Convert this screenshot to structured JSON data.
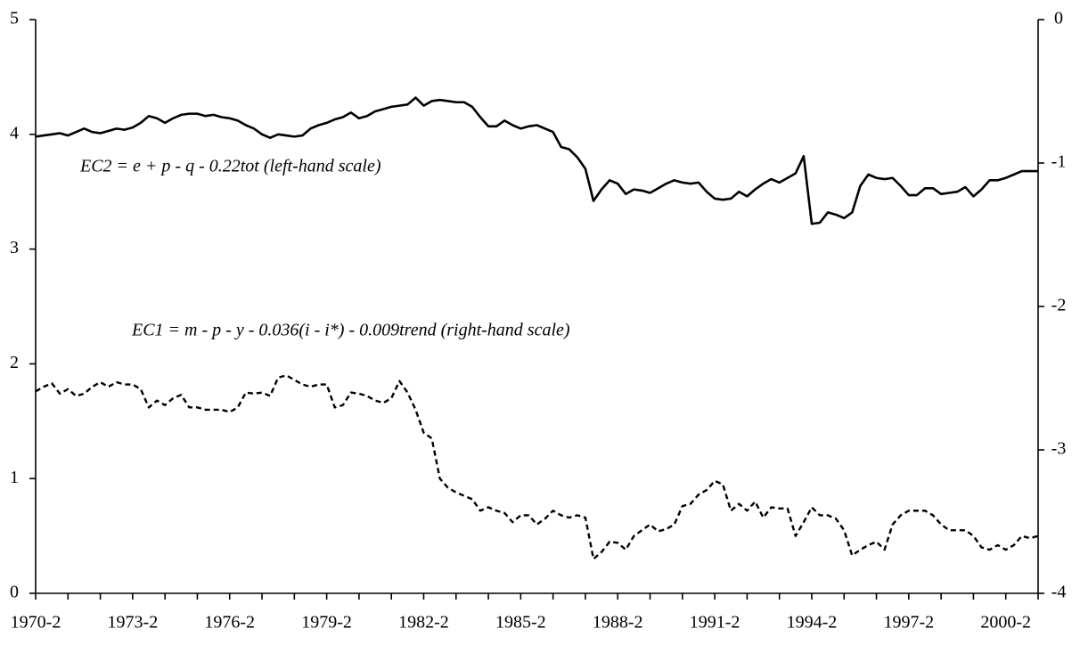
{
  "chart_data": {
    "type": "line",
    "categories": [
      "1970-2",
      null,
      null,
      null,
      null,
      null,
      null,
      null,
      null,
      null,
      null,
      null,
      "1973-2",
      null,
      null,
      null,
      null,
      null,
      null,
      null,
      null,
      null,
      null,
      null,
      "1976-2",
      null,
      null,
      null,
      null,
      null,
      null,
      null,
      null,
      null,
      null,
      null,
      "1979-2",
      null,
      null,
      null,
      null,
      null,
      null,
      null,
      null,
      null,
      null,
      null,
      "1982-2",
      null,
      null,
      null,
      null,
      null,
      null,
      null,
      null,
      null,
      null,
      null,
      "1985-2",
      null,
      null,
      null,
      null,
      null,
      null,
      null,
      null,
      null,
      null,
      null,
      "1988-2",
      null,
      null,
      null,
      null,
      null,
      null,
      null,
      null,
      null,
      null,
      null,
      "1991-2",
      null,
      null,
      null,
      null,
      null,
      null,
      null,
      null,
      null,
      null,
      null,
      "1994-2",
      null,
      null,
      null,
      null,
      null,
      null,
      null,
      null,
      null,
      null,
      null,
      "1997-2",
      null,
      null,
      null,
      null,
      null,
      null,
      null,
      null,
      null,
      null,
      null,
      "2000-2",
      null,
      null,
      null,
      null
    ],
    "ylim": [
      0,
      5
    ],
    "yticks": [
      0,
      1,
      2,
      3,
      4,
      5
    ],
    "y2lim": [
      -4,
      0
    ],
    "y2ticks": [
      -4,
      -3,
      -2,
      -1,
      0
    ],
    "series": [
      {
        "name": "EC2 = e + p - q - 0.22tot (left-hand scale)",
        "color": "#000000",
        "dashed": false,
        "axis": "y",
        "values": [
          3.98,
          3.99,
          4.0,
          4.01,
          3.99,
          4.02,
          4.05,
          4.02,
          4.01,
          4.03,
          4.05,
          4.04,
          4.06,
          4.1,
          4.16,
          4.14,
          4.1,
          4.14,
          4.17,
          4.18,
          4.18,
          4.16,
          4.17,
          4.15,
          4.14,
          4.12,
          4.08,
          4.05,
          4.0,
          3.97,
          4.0,
          3.99,
          3.98,
          3.99,
          4.05,
          4.08,
          4.1,
          4.13,
          4.15,
          4.19,
          4.14,
          4.16,
          4.2,
          4.22,
          4.24,
          4.25,
          4.26,
          4.32,
          4.25,
          4.29,
          4.3,
          4.29,
          4.28,
          4.28,
          4.24,
          4.15,
          4.07,
          4.07,
          4.12,
          4.08,
          4.05,
          4.07,
          4.08,
          4.05,
          4.02,
          3.89,
          3.87,
          3.8,
          3.7,
          3.42,
          3.52,
          3.6,
          3.57,
          3.48,
          3.52,
          3.51,
          3.49,
          3.53,
          3.57,
          3.6,
          3.58,
          3.57,
          3.58,
          3.5,
          3.44,
          3.43,
          3.44,
          3.5,
          3.46,
          3.52,
          3.57,
          3.61,
          3.58,
          3.62,
          3.66,
          3.81,
          3.22,
          3.23,
          3.32,
          3.3,
          3.27,
          3.32,
          3.55,
          3.65,
          3.62,
          3.61,
          3.62,
          3.55,
          3.47,
          3.47,
          3.53,
          3.53,
          3.48,
          3.49,
          3.5,
          3.54,
          3.46,
          3.52,
          3.6,
          3.6,
          3.62,
          3.65,
          3.68,
          3.68,
          3.68
        ]
      },
      {
        "name": "EC1 = m - p - y - 0.036(i - i*) - 0.009trend (right-hand scale)",
        "color": "#000000",
        "dashed": true,
        "axis": "y2",
        "values": [
          -2.592,
          -2.56,
          -2.536,
          -2.608,
          -2.576,
          -2.624,
          -2.608,
          -2.56,
          -2.528,
          -2.56,
          -2.528,
          -2.544,
          -2.544,
          -2.576,
          -2.704,
          -2.656,
          -2.688,
          -2.64,
          -2.616,
          -2.704,
          -2.704,
          -2.72,
          -2.72,
          -2.72,
          -2.736,
          -2.704,
          -2.6,
          -2.608,
          -2.6,
          -2.624,
          -2.496,
          -2.48,
          -2.512,
          -2.544,
          -2.56,
          -2.544,
          -2.544,
          -2.704,
          -2.688,
          -2.6,
          -2.608,
          -2.624,
          -2.656,
          -2.672,
          -2.64,
          -2.52,
          -2.6,
          -2.72,
          -2.88,
          -2.92,
          -3.2,
          -3.264,
          -3.296,
          -3.32,
          -3.344,
          -3.424,
          -3.4,
          -3.424,
          -3.44,
          -3.504,
          -3.456,
          -3.456,
          -3.52,
          -3.48,
          -3.424,
          -3.456,
          -3.472,
          -3.456,
          -3.472,
          -3.76,
          -3.712,
          -3.64,
          -3.648,
          -3.696,
          -3.6,
          -3.56,
          -3.52,
          -3.568,
          -3.552,
          -3.52,
          -3.392,
          -3.376,
          -3.312,
          -3.28,
          -3.216,
          -3.24,
          -3.424,
          -3.376,
          -3.424,
          -3.36,
          -3.472,
          -3.4,
          -3.408,
          -3.408,
          -3.6,
          -3.504,
          -3.4,
          -3.456,
          -3.456,
          -3.48,
          -3.56,
          -3.736,
          -3.696,
          -3.664,
          -3.64,
          -3.696,
          -3.52,
          -3.456,
          -3.424,
          -3.424,
          -3.424,
          -3.456,
          -3.52,
          -3.56,
          -3.56,
          -3.56,
          -3.6,
          -3.68,
          -3.696,
          -3.664,
          -3.696,
          -3.664,
          -3.6,
          -3.616,
          -3.6
        ]
      }
    ]
  }
}
